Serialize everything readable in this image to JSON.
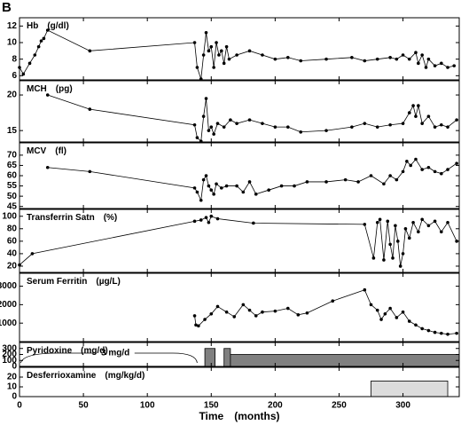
{
  "panel_label": "B",
  "chart_data": [
    {
      "type": "line",
      "title": "Hb",
      "unit": "(g/dl)",
      "ylim": [
        5.5,
        13
      ],
      "yticks": [
        6,
        8,
        10,
        12
      ],
      "xlim": [
        0,
        344
      ],
      "x": [
        0,
        3,
        8,
        12,
        15,
        17,
        19,
        22,
        55,
        137,
        139,
        142,
        144,
        146,
        148,
        150,
        152,
        154,
        156,
        158,
        160,
        162,
        164,
        170,
        180,
        190,
        200,
        210,
        220,
        240,
        260,
        270,
        280,
        290,
        295,
        300,
        305,
        310,
        312,
        315,
        318,
        320,
        325,
        330,
        335,
        340
      ],
      "values": [
        7,
        6.2,
        7.5,
        8.5,
        9.5,
        10.2,
        10.5,
        11.5,
        9,
        10,
        7,
        5.6,
        8.5,
        11.2,
        9,
        9.5,
        7,
        10,
        8.5,
        9,
        7.5,
        9.5,
        8,
        8.5,
        9,
        8.5,
        8,
        8.2,
        7.8,
        8,
        8.2,
        7.8,
        8,
        8.2,
        8,
        8.5,
        8,
        8.8,
        7.5,
        8.5,
        7,
        8,
        7.2,
        7.5,
        7,
        7.2
      ]
    },
    {
      "type": "line",
      "title": "MCH",
      "unit": "(pg)",
      "ylim": [
        13.4,
        22
      ],
      "yticks": [
        15,
        20
      ],
      "xlim": [
        0,
        344
      ],
      "x": [
        22,
        55,
        137,
        139,
        142,
        144,
        146,
        148,
        150,
        152,
        155,
        160,
        165,
        170,
        180,
        190,
        200,
        210,
        220,
        240,
        260,
        270,
        280,
        290,
        300,
        305,
        308,
        310,
        312,
        315,
        320,
        325,
        330,
        335,
        342
      ],
      "values": [
        20,
        18,
        15.8,
        14,
        13.5,
        17,
        19.5,
        15,
        15.5,
        14.5,
        16,
        15.5,
        16.5,
        16,
        16.5,
        16,
        15.5,
        15.5,
        14.8,
        15,
        15.5,
        16,
        15.5,
        15.8,
        16,
        17.5,
        18.5,
        17,
        18.5,
        16,
        17,
        15.5,
        15.8,
        15.5,
        16.5
      ]
    },
    {
      "type": "line",
      "title": "MCV",
      "unit": "(fl)",
      "ylim": [
        44,
        76
      ],
      "yticks": [
        45,
        50,
        55,
        60,
        65,
        70
      ],
      "xlim": [
        0,
        344
      ],
      "x": [
        22,
        55,
        137,
        139,
        142,
        144,
        146,
        148,
        150,
        152,
        154,
        158,
        162,
        170,
        175,
        180,
        185,
        195,
        205,
        215,
        225,
        240,
        255,
        265,
        275,
        285,
        290,
        295,
        300,
        303,
        306,
        310,
        315,
        320,
        325,
        330,
        335,
        342
      ],
      "values": [
        64,
        62,
        54,
        52,
        48,
        58,
        60,
        55,
        53,
        51,
        56,
        54,
        55,
        55,
        52,
        57,
        51,
        53,
        55,
        55,
        57,
        57,
        58,
        57,
        60,
        56,
        60,
        58,
        62,
        67,
        65,
        68,
        63,
        64,
        62,
        61,
        63,
        66
      ]
    },
    {
      "type": "line",
      "title": "Transferrin Satn",
      "unit": "(%)",
      "ylim": [
        10,
        111
      ],
      "yticks": [
        20,
        40,
        60,
        80,
        100
      ],
      "xlim": [
        0,
        344
      ],
      "x": [
        0,
        10,
        137,
        142,
        146,
        148,
        150,
        155,
        183,
        270,
        277,
        280,
        282,
        285,
        288,
        290,
        292,
        294,
        296,
        298,
        300,
        302,
        305,
        308,
        312,
        315,
        320,
        325,
        330,
        335,
        342
      ],
      "values": [
        22,
        40,
        92,
        94,
        98,
        90,
        100,
        96,
        89,
        87,
        33,
        90,
        95,
        30,
        92,
        55,
        33,
        85,
        60,
        20,
        40,
        80,
        65,
        90,
        75,
        95,
        85,
        92,
        75,
        90,
        60
      ]
    },
    {
      "type": "line",
      "title": "Serum Ferritin",
      "unit": "(µg/L)",
      "ylim": [
        0,
        3700
      ],
      "yticks": [
        1000,
        2000,
        3000
      ],
      "xlim": [
        0,
        344
      ],
      "x": [
        137,
        138,
        140,
        145,
        150,
        155,
        162,
        168,
        175,
        180,
        185,
        190,
        200,
        210,
        218,
        225,
        245,
        270,
        275,
        280,
        283,
        286,
        290,
        295,
        300,
        305,
        310,
        315,
        320,
        325,
        330,
        335,
        342
      ],
      "values": [
        1400,
        900,
        850,
        1200,
        1500,
        1900,
        1600,
        1350,
        2000,
        1700,
        1400,
        1600,
        1650,
        1800,
        1450,
        1550,
        2200,
        2800,
        2000,
        1700,
        1200,
        1500,
        1800,
        1300,
        1600,
        1100,
        900,
        700,
        600,
        500,
        450,
        400,
        450
      ]
    },
    {
      "type": "step",
      "title": "Pyridoxine",
      "unit": "(mg/d)",
      "ylim": [
        0,
        400
      ],
      "yticks": [
        0,
        100,
        200,
        300
      ],
      "xlim": [
        0,
        344
      ],
      "color": "#808080",
      "annotation": "3 mg/d",
      "steps": [
        {
          "start": 0,
          "end": 145,
          "value": 3
        },
        {
          "start": 145,
          "end": 153,
          "value": 300
        },
        {
          "start": 160,
          "end": 165,
          "value": 300
        },
        {
          "start": 165,
          "end": 344,
          "value": 200
        }
      ]
    },
    {
      "type": "step",
      "title": "Desferrioxamine",
      "unit": "(mg/kg/d)",
      "ylim": [
        0,
        30
      ],
      "yticks": [
        0,
        10,
        20
      ],
      "xlim": [
        0,
        344
      ],
      "color": "#dcdcdc",
      "steps": [
        {
          "start": 275,
          "end": 335,
          "value": 16
        }
      ],
      "xticks": [
        0,
        50,
        100,
        150,
        200,
        250,
        300
      ],
      "xlabel": "Time",
      "xunit": "(months)"
    }
  ]
}
